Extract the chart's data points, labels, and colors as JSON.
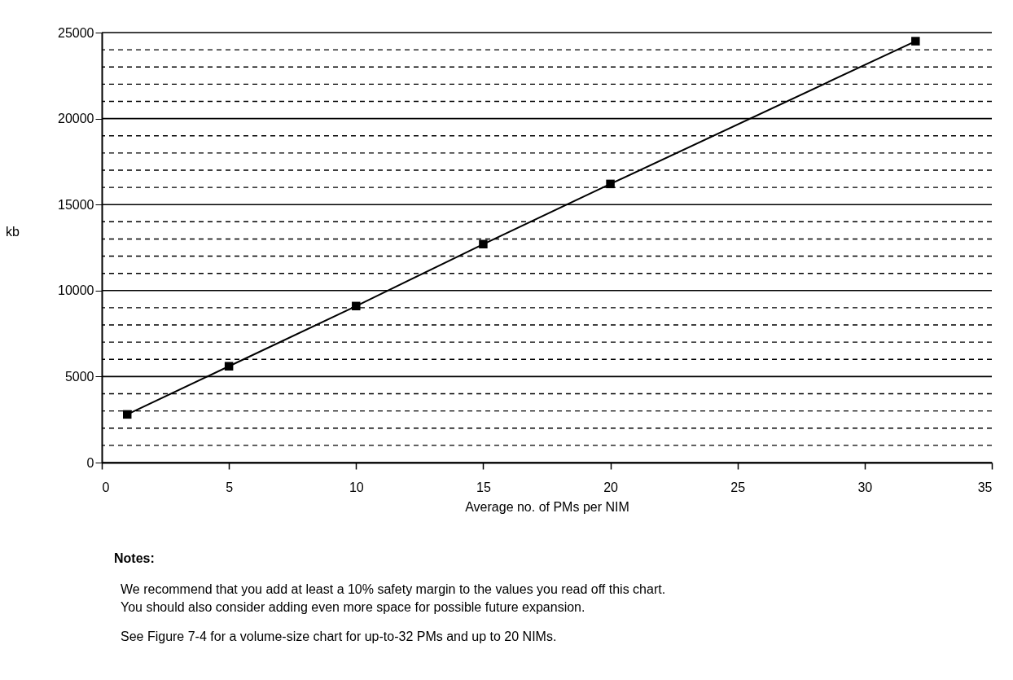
{
  "chart_data": {
    "type": "line",
    "xlabel": "Average no. of PMs per NIM",
    "ylabel": "kb",
    "x": [
      1,
      5,
      10,
      15,
      20,
      32
    ],
    "series": [
      {
        "color": "#000000",
        "values": [
          2800,
          5600,
          9100,
          12700,
          16200,
          24500
        ]
      }
    ],
    "marker": "square",
    "line_style": "solid",
    "xlim": [
      0,
      35
    ],
    "xticks": [
      0,
      5,
      10,
      15,
      20,
      25,
      30,
      35
    ],
    "ylim": [
      0,
      25000
    ],
    "yticks": [
      0,
      {
        "value": 1000,
        "label": null
      },
      {
        "value": 2000,
        "label": null
      },
      {
        "value": 3000,
        "label": null
      },
      {
        "value": 4000,
        "label": null
      },
      5000,
      {
        "value": 6000,
        "label": null
      },
      {
        "value": 7000,
        "label": null
      },
      {
        "value": 8000,
        "label": null
      },
      {
        "value": 9000,
        "label": null
      },
      10000,
      {
        "value": 11000,
        "label": null
      },
      {
        "value": 12000,
        "label": null
      },
      {
        "value": 13000,
        "label": null
      },
      {
        "value": 14000,
        "label": null
      },
      15000,
      {
        "value": 16000,
        "label": null
      },
      {
        "value": 17000,
        "label": null
      },
      {
        "value": 18000,
        "label": null
      },
      {
        "value": 19000,
        "label": null
      },
      20000,
      {
        "value": 21000,
        "label": null
      },
      {
        "value": 22000,
        "label": null
      },
      {
        "value": 23000,
        "label": null
      },
      {
        "value": 24000,
        "label": null
      },
      25000
    ],
    "grid": "y",
    "annotations": [
      "Notes:",
      "We recommend that you add at least a 10% safety margin to the values you read off this chart.",
      "You should also consider adding even more space for possible future expansion.",
      "See Figure 7-4 for a volume-size chart for up-to-32 PMs and up to 20 NIMs."
    ]
  }
}
